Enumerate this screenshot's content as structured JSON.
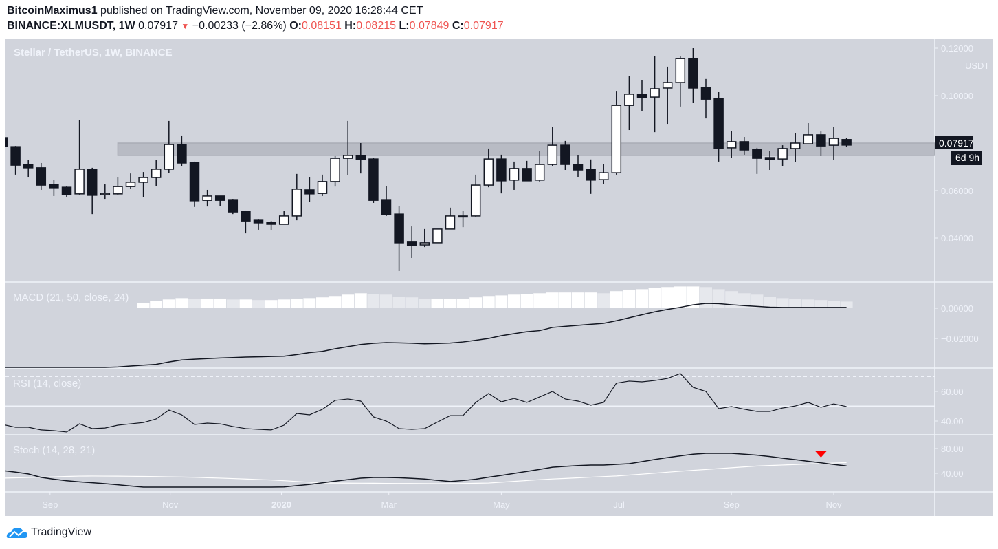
{
  "header": {
    "author": "BitcoinMaximus1",
    "published_text": "published on TradingView.com, November 09, 2020 16:28:44 CET",
    "symbol": "BINANCE:XLMUSDT, 1W",
    "last": "0.07917",
    "change": "−0.00233 (−2.86%)",
    "open_label": "O:",
    "open": "0.08151",
    "high_label": "H:",
    "high": "0.08215",
    "low_label": "L:",
    "low": "0.07849",
    "close_label": "C:",
    "close": "0.07917",
    "down_color": "#ef5350"
  },
  "chart_data": {
    "type": "candlestick",
    "title": "Stellar / TetherUS, 1W, BINANCE",
    "currency": "USDT",
    "price_axis_ticks": [
      "0.12000",
      "0.10000",
      "0.06000",
      "0.04000"
    ],
    "price_axis_tick_values": [
      0.12,
      0.1,
      0.06,
      0.04
    ],
    "last_price_label": "0.07917",
    "countdown_label": "6d 9h",
    "time_axis_labels": [
      "Sep",
      "Nov",
      "2020",
      "Mar",
      "May",
      "Jul",
      "Sep",
      "Nov"
    ],
    "support_resistance_zone": {
      "low": 0.0748,
      "high": 0.08,
      "start_index": 9,
      "color": "#b8bbc4"
    },
    "colors": {
      "background": "#d1d4dc",
      "up": "#ffffff",
      "down": "#131722"
    },
    "ohlc": [
      [
        0.0823,
        0.0823,
        0.0785,
        0.0785
      ],
      [
        0.0785,
        0.0788,
        0.0667,
        0.0707
      ],
      [
        0.071,
        0.0728,
        0.0655,
        0.0696
      ],
      [
        0.0696,
        0.0716,
        0.0603,
        0.0623
      ],
      [
        0.0626,
        0.0646,
        0.0577,
        0.0612
      ],
      [
        0.0614,
        0.062,
        0.0571,
        0.0583
      ],
      [
        0.0586,
        0.0896,
        0.0583,
        0.069
      ],
      [
        0.069,
        0.0696,
        0.0501,
        0.058
      ],
      [
        0.0583,
        0.0626,
        0.0565,
        0.0588
      ],
      [
        0.0586,
        0.0655,
        0.058,
        0.0617
      ],
      [
        0.0617,
        0.0672,
        0.0606,
        0.0635
      ],
      [
        0.0635,
        0.0678,
        0.0571,
        0.0655
      ],
      [
        0.0655,
        0.0728,
        0.062,
        0.069
      ],
      [
        0.069,
        0.0893,
        0.0675,
        0.0794
      ],
      [
        0.0794,
        0.0832,
        0.0704,
        0.0716
      ],
      [
        0.0719,
        0.0722,
        0.0531,
        0.0557
      ],
      [
        0.0559,
        0.0603,
        0.0533,
        0.0577
      ],
      [
        0.0577,
        0.0577,
        0.0536,
        0.0559
      ],
      [
        0.0562,
        0.0565,
        0.0501,
        0.051
      ],
      [
        0.0513,
        0.0516,
        0.042,
        0.0472
      ],
      [
        0.0475,
        0.0478,
        0.0435,
        0.0464
      ],
      [
        0.0467,
        0.0472,
        0.0432,
        0.0458
      ],
      [
        0.0458,
        0.0513,
        0.0458,
        0.0493
      ],
      [
        0.0493,
        0.067,
        0.0475,
        0.0606
      ],
      [
        0.0603,
        0.0655,
        0.0551,
        0.0586
      ],
      [
        0.0588,
        0.0667,
        0.0577,
        0.0638
      ],
      [
        0.0638,
        0.0745,
        0.0617,
        0.0736
      ],
      [
        0.0736,
        0.0893,
        0.0664,
        0.0748
      ],
      [
        0.0748,
        0.08,
        0.0672,
        0.0731
      ],
      [
        0.0733,
        0.0739,
        0.0548,
        0.0559
      ],
      [
        0.0562,
        0.062,
        0.0493,
        0.0499
      ],
      [
        0.0501,
        0.0536,
        0.0261,
        0.038
      ],
      [
        0.0383,
        0.0449,
        0.0316,
        0.0368
      ],
      [
        0.0371,
        0.0438,
        0.0362,
        0.038
      ],
      [
        0.038,
        0.0438,
        0.038,
        0.0438
      ],
      [
        0.0438,
        0.0528,
        0.0438,
        0.0493
      ],
      [
        0.0493,
        0.0513,
        0.0446,
        0.0493
      ],
      [
        0.0493,
        0.0667,
        0.0487,
        0.0623
      ],
      [
        0.0623,
        0.0777,
        0.0614,
        0.0733
      ],
      [
        0.0733,
        0.0751,
        0.0588,
        0.0641
      ],
      [
        0.0644,
        0.0722,
        0.0603,
        0.0693
      ],
      [
        0.0693,
        0.0725,
        0.0641,
        0.0641
      ],
      [
        0.0644,
        0.0768,
        0.0635,
        0.071
      ],
      [
        0.071,
        0.0867,
        0.0702,
        0.0791
      ],
      [
        0.0791,
        0.0809,
        0.0687,
        0.071
      ],
      [
        0.071,
        0.0748,
        0.0658,
        0.0687
      ],
      [
        0.069,
        0.0731,
        0.0586,
        0.0644
      ],
      [
        0.0646,
        0.0713,
        0.0629,
        0.0675
      ],
      [
        0.0675,
        0.102,
        0.0667,
        0.0959
      ],
      [
        0.0959,
        0.1084,
        0.0855,
        0.1006
      ],
      [
        0.1006,
        0.1064,
        0.0936,
        0.0991
      ],
      [
        0.0994,
        0.1168,
        0.0846,
        0.1029
      ],
      [
        0.1032,
        0.1122,
        0.0881,
        0.1055
      ],
      [
        0.1055,
        0.1165,
        0.0954,
        0.1156
      ],
      [
        0.1156,
        0.12,
        0.0971,
        0.1032
      ],
      [
        0.1035,
        0.107,
        0.0904,
        0.0985
      ],
      [
        0.0988,
        0.1015,
        0.0722,
        0.0777
      ],
      [
        0.078,
        0.0852,
        0.0739,
        0.0806
      ],
      [
        0.0806,
        0.0826,
        0.0751,
        0.0771
      ],
      [
        0.0774,
        0.078,
        0.067,
        0.0736
      ],
      [
        0.0739,
        0.0768,
        0.0687,
        0.0731
      ],
      [
        0.0733,
        0.0791,
        0.0702,
        0.0777
      ],
      [
        0.0777,
        0.0843,
        0.0719,
        0.08
      ],
      [
        0.0797,
        0.0884,
        0.0797,
        0.0835
      ],
      [
        0.0835,
        0.0849,
        0.0745,
        0.0788
      ],
      [
        0.0791,
        0.0867,
        0.0728,
        0.082
      ],
      [
        0.08151,
        0.08215,
        0.07849,
        0.07917
      ]
    ],
    "macd": {
      "label": "MACD (21, 50, close, 24)",
      "axis_ticks": [
        "0.00000",
        "−0.02000"
      ],
      "axis_tick_values": [
        0,
        -0.02
      ],
      "histogram_start_index": 11,
      "histogram": [
        0.0036,
        0.005,
        0.0059,
        0.0068,
        0.0064,
        0.0064,
        0.0064,
        0.0059,
        0.0059,
        0.0055,
        0.0055,
        0.0059,
        0.0064,
        0.0068,
        0.0073,
        0.0082,
        0.0091,
        0.01,
        0.0095,
        0.0091,
        0.0077,
        0.0073,
        0.0064,
        0.0064,
        0.0064,
        0.0064,
        0.0073,
        0.0082,
        0.0086,
        0.0091,
        0.0095,
        0.01,
        0.0105,
        0.0105,
        0.0105,
        0.0105,
        0.01,
        0.0114,
        0.0123,
        0.0127,
        0.0136,
        0.0141,
        0.0145,
        0.0145,
        0.0141,
        0.0127,
        0.0114,
        0.01,
        0.0091,
        0.0077,
        0.0068,
        0.0064,
        0.0059,
        0.0055,
        0.005,
        0.0045
      ],
      "line": [
        -0.0391,
        -0.0391,
        -0.0391,
        -0.0391,
        -0.0391,
        -0.0391,
        -0.0391,
        -0.0391,
        -0.0391,
        -0.0388,
        -0.0382,
        -0.0376,
        -0.0371,
        -0.0355,
        -0.0342,
        -0.0337,
        -0.0333,
        -0.0329,
        -0.0326,
        -0.0323,
        -0.0321,
        -0.0319,
        -0.0317,
        -0.0306,
        -0.0293,
        -0.0285,
        -0.0268,
        -0.0254,
        -0.024,
        -0.0232,
        -0.0227,
        -0.0229,
        -0.0231,
        -0.0235,
        -0.0233,
        -0.023,
        -0.0223,
        -0.0212,
        -0.02,
        -0.0182,
        -0.0168,
        -0.0155,
        -0.0148,
        -0.0127,
        -0.012,
        -0.0113,
        -0.0106,
        -0.01,
        -0.0083,
        -0.0063,
        -0.0043,
        -0.0024,
        -0.0008,
        0.0006,
        0.0022,
        0.0032,
        0.003,
        0.0023,
        0.0017,
        0.0012,
        0.0007,
        0.0005,
        0.0005,
        0.0005,
        0.0005,
        0.0005,
        0.0005
      ],
      "colors": {
        "hist_rising": "#ffffff",
        "hist_falling": "#e6e8ed",
        "line": "#131722"
      }
    },
    "rsi": {
      "label": "RSI (14, close)",
      "axis_ticks": [
        "60.00",
        "40.00"
      ],
      "axis_tick_values": [
        60,
        40
      ],
      "bands": [
        70,
        50
      ],
      "values": [
        37.7,
        35.8,
        35.8,
        34,
        33.5,
        32.6,
        38.1,
        34.9,
        35.3,
        37.2,
        38.1,
        39,
        41.4,
        47.4,
        44.2,
        37.7,
        38.6,
        38.1,
        36.3,
        34.9,
        34.4,
        34,
        37.2,
        45.1,
        44.2,
        47.9,
        54,
        54.9,
        53.5,
        42.8,
        40,
        34.9,
        34.4,
        34.9,
        39.3,
        43.7,
        43.7,
        52.6,
        58.6,
        53,
        55.3,
        52.6,
        56.3,
        60,
        54.9,
        53.5,
        50.7,
        52.6,
        65.6,
        67,
        66.5,
        67.4,
        68.8,
        72.1,
        62.8,
        60,
        48.4,
        49.8,
        48,
        46.5,
        46.5,
        48.8,
        50.2,
        52.6,
        49.3,
        51.6,
        49.8
      ]
    },
    "stoch": {
      "label": "Stoch (14, 28, 21)",
      "axis_ticks": [
        "80.00",
        "40.00"
      ],
      "axis_tick_values": [
        80,
        40
      ],
      "k": [
        44.4,
        42,
        39,
        33.5,
        30.5,
        28,
        26.3,
        24.8,
        23.3,
        21.5,
        19.6,
        17.8,
        17.8,
        17.8,
        17.8,
        17.8,
        17.8,
        17.8,
        17.8,
        17.8,
        17.8,
        17.8,
        18.1,
        20.1,
        22.1,
        24.7,
        27.3,
        29.8,
        32.2,
        33.3,
        33.3,
        32.9,
        32,
        30.8,
        28.7,
        26.8,
        28.4,
        30.6,
        33.7,
        36.7,
        39.9,
        43.1,
        46.4,
        49.8,
        51.2,
        52.5,
        53.3,
        53.3,
        54.4,
        55.6,
        58.9,
        62.4,
        65.4,
        68.2,
        70.9,
        72.2,
        72.2,
        72.2,
        70.8,
        69.3,
        67.1,
        64.5,
        62.1,
        59.5,
        57,
        54.3,
        52
      ],
      "d": [
        32.2,
        32.8,
        33.3,
        33.9,
        34.4,
        35,
        35.5,
        35.6,
        35.5,
        35.4,
        35.2,
        35,
        34.8,
        34.4,
        34,
        33.6,
        32.9,
        32.3,
        31.6,
        30.8,
        30,
        29.3,
        28.1,
        26.9,
        25.6,
        24.4,
        24.3,
        24.2,
        24.1,
        24,
        23.8,
        23.7,
        23.6,
        23.5,
        23.4,
        23.5,
        23.7,
        24,
        24.4,
        25.7,
        27.1,
        28.4,
        29.8,
        30.9,
        31.8,
        32.8,
        33.8,
        34.8,
        35.7,
        37.2,
        38.7,
        40.3,
        41.9,
        43.4,
        44.9,
        46.2,
        47.6,
        49,
        50.4,
        51.8,
        52.6,
        53.4,
        54.2,
        55,
        55.8,
        56.6,
        57.4
      ],
      "signal_marker": {
        "index": 64,
        "shape": "down-triangle",
        "color": "#ff0000"
      },
      "colors": {
        "k": "#131722",
        "d": "#ffffff"
      }
    }
  },
  "footer": {
    "logo_text": "TradingView",
    "logo_color": "#2196f3"
  }
}
